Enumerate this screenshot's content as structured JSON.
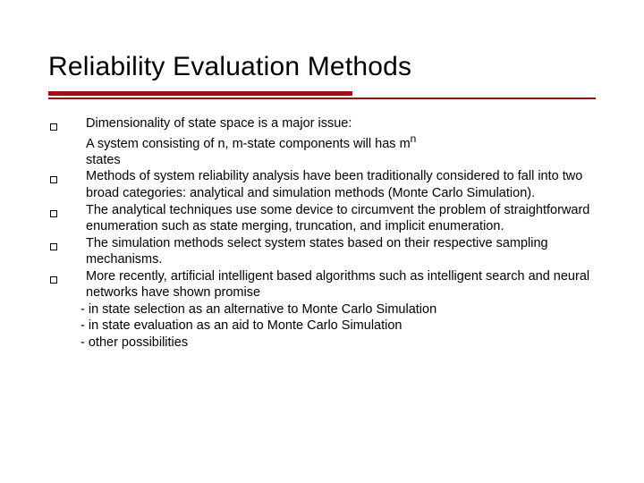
{
  "title": "Reliability Evaluation Methods",
  "colors": {
    "rule": "#a30f0f",
    "text": "#000000",
    "background": "#ffffff"
  },
  "typography": {
    "title_fontsize": 30,
    "body_fontsize": 14.5,
    "font_family": "Verdana"
  },
  "bullets": [
    {
      "line1": "Dimensionality of state space is a major issue:",
      "line2_pre": "A system consisting of n, m-state components will has m",
      "line2_sup": "n",
      "line3": "states"
    },
    {
      "text": "Methods of  system reliability analysis have been traditionally considered to fall into two broad categories: analytical and simulation methods (Monte Carlo Simulation)."
    },
    {
      "text": "The analytical techniques use some device to circumvent the problem of straightforward enumeration such as state merging, truncation, and implicit enumeration."
    },
    {
      "text": "The simulation methods select system states based on their respective sampling mechanisms."
    },
    {
      "text": "More recently, artificial intelligent based algorithms such as intelligent search and neural networks have shown promise"
    }
  ],
  "sub_lines": [
    "- in state selection as an alternative to Monte Carlo Simulation",
    "- in state evaluation as an aid to Monte Carlo Simulation",
    "- other possibilities"
  ]
}
